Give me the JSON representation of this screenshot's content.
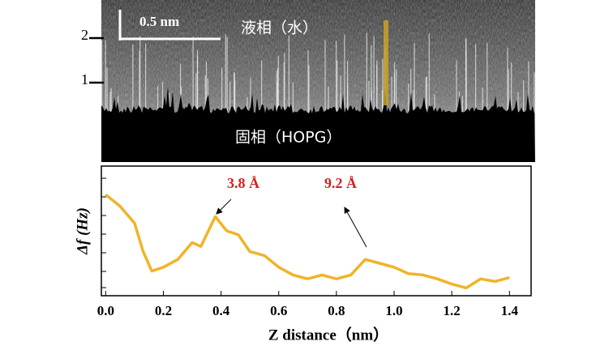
{
  "image": {
    "markers": [
      "2",
      "1"
    ],
    "scale_bar": "0.5 nm",
    "liquid_label": "液相（水）",
    "solid_label": "固相（HOPG）"
  },
  "chart_data": {
    "type": "line",
    "x": [
      0.0,
      0.05,
      0.1,
      0.13,
      0.16,
      0.2,
      0.25,
      0.3,
      0.33,
      0.38,
      0.42,
      0.46,
      0.5,
      0.55,
      0.6,
      0.65,
      0.7,
      0.75,
      0.8,
      0.85,
      0.9,
      0.95,
      1.0,
      1.05,
      1.1,
      1.15,
      1.2,
      1.25,
      1.3,
      1.35,
      1.4
    ],
    "values": [
      7.8,
      6.9,
      5.6,
      3.4,
      1.9,
      2.2,
      2.8,
      4.1,
      3.8,
      6.1,
      5.0,
      4.7,
      3.4,
      3.1,
      2.2,
      1.6,
      1.3,
      1.6,
      1.3,
      1.6,
      2.8,
      2.5,
      2.2,
      1.7,
      1.6,
      1.3,
      0.9,
      0.6,
      1.3,
      1.1,
      1.4
    ],
    "color": "#f0b429",
    "xlim": [
      -0.015,
      1.475
    ],
    "ylim": [
      0,
      10
    ],
    "xticks": [
      {
        "value": 0,
        "label": "0.0"
      },
      0.2,
      0.4,
      0.6,
      0.8,
      {
        "value": 1,
        "label": "1.0"
      },
      1.2,
      1.4
    ],
    "x_label": "Z distance（nm）",
    "y_label": "Δf (Hz)",
    "annotations": [
      "3.8 Å",
      "9.2 Å"
    ]
  }
}
